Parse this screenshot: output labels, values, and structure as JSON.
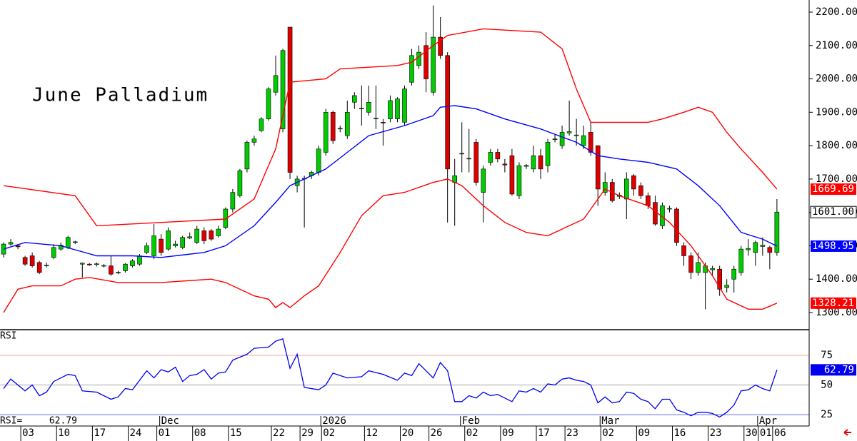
{
  "chart_data": [
    {
      "type": "candlestick",
      "title": "June Palladium",
      "xlim": [
        -0.5,
        112.5
      ],
      "ylim": [
        1248.7,
        2236.3
      ],
      "yticks": [
        {
          "value": 1300,
          "label": "1300.00"
        },
        {
          "value": 1400,
          "label": "1400.00"
        },
        {
          "value": 1500,
          "label": "1500.00"
        },
        {
          "value": 1600,
          "label": "1600.00"
        },
        {
          "value": 1700,
          "label": "1700.00"
        },
        {
          "value": 1800,
          "label": "1800.00"
        },
        {
          "value": 1900,
          "label": "1900.00"
        },
        {
          "value": 2000,
          "label": "2000.00"
        },
        {
          "value": 2100,
          "label": "2100.00"
        },
        {
          "value": 2200,
          "label": "2200.00"
        }
      ],
      "xticks": [
        {
          "value": 3,
          "label": "03"
        },
        {
          "value": 8,
          "label": "10"
        },
        {
          "value": 13,
          "label": "17"
        },
        {
          "value": 18,
          "label": "24"
        },
        {
          "value": 22,
          "label": "01"
        },
        {
          "value": 27,
          "label": "08"
        },
        {
          "value": 32,
          "label": "15"
        },
        {
          "value": 38,
          "label": "22"
        },
        {
          "value": 42,
          "label": "29"
        },
        {
          "value": 45,
          "label": "02"
        },
        {
          "value": 51,
          "label": "12"
        },
        {
          "value": 56,
          "label": "20"
        },
        {
          "value": 60,
          "label": "26"
        },
        {
          "value": 65,
          "label": "02"
        },
        {
          "value": 70,
          "label": "09"
        },
        {
          "value": 75,
          "label": "17"
        },
        {
          "value": 79,
          "label": "23"
        },
        {
          "value": 84,
          "label": "02"
        },
        {
          "value": 89,
          "label": "09"
        },
        {
          "value": 94,
          "label": "16"
        },
        {
          "value": 99,
          "label": "23"
        },
        {
          "value": 104,
          "label": "30"
        },
        {
          "value": 106,
          "label": "01"
        },
        {
          "value": 108,
          "label": "06"
        }
      ],
      "up_color": "#00cc00",
      "down_color": "#dd0000",
      "ohlc": [
        [
          1475,
          1510,
          1465,
          1505
        ],
        [
          1505,
          1520,
          1500,
          1510
        ],
        [
          1500,
          1505,
          1490,
          1497
        ],
        [
          1465,
          1470,
          1440,
          1445
        ],
        [
          1470,
          1480,
          1435,
          1440
        ],
        [
          1450,
          1455,
          1415,
          1420
        ],
        [
          1440,
          1450,
          1435,
          1442
        ],
        [
          1465,
          1505,
          1460,
          1495
        ],
        [
          1490,
          1510,
          1485,
          1502
        ],
        [
          1495,
          1530,
          1490,
          1525
        ],
        [
          1510,
          1515,
          1505,
          1512
        ],
        [
          1445,
          1450,
          1405,
          1448
        ],
        [
          1445,
          1448,
          1440,
          1444
        ],
        [
          1445,
          1450,
          1438,
          1446
        ],
        [
          1440,
          1445,
          1435,
          1441
        ],
        [
          1440,
          1470,
          1410,
          1415
        ],
        [
          1420,
          1425,
          1415,
          1421
        ],
        [
          1425,
          1448,
          1420,
          1445
        ],
        [
          1440,
          1460,
          1435,
          1455
        ],
        [
          1445,
          1475,
          1440,
          1470
        ],
        [
          1480,
          1510,
          1475,
          1500
        ],
        [
          1470,
          1565,
          1460,
          1530
        ],
        [
          1520,
          1535,
          1470,
          1480
        ],
        [
          1490,
          1555,
          1485,
          1545
        ],
        [
          1500,
          1515,
          1495,
          1505
        ],
        [
          1495,
          1530,
          1490,
          1525
        ],
        [
          1523,
          1540,
          1520,
          1527
        ],
        [
          1510,
          1560,
          1505,
          1550
        ],
        [
          1545,
          1555,
          1505,
          1515
        ],
        [
          1545,
          1550,
          1515,
          1520
        ],
        [
          1530,
          1560,
          1525,
          1550
        ],
        [
          1555,
          1615,
          1550,
          1610
        ],
        [
          1610,
          1670,
          1600,
          1660
        ],
        [
          1650,
          1730,
          1645,
          1725
        ],
        [
          1730,
          1815,
          1720,
          1810
        ],
        [
          1810,
          1830,
          1800,
          1820
        ],
        [
          1845,
          1885,
          1840,
          1880
        ],
        [
          1880,
          1975,
          1875,
          1970
        ],
        [
          1960,
          2070,
          1950,
          2010
        ],
        [
          1850,
          2090,
          1840,
          2085
        ],
        [
          2155,
          2155,
          1700,
          1720
        ],
        [
          1680,
          1710,
          1660,
          1700
        ],
        [
          1700,
          1710,
          1555,
          1702
        ],
        [
          1710,
          1725,
          1700,
          1720
        ],
        [
          1720,
          1800,
          1710,
          1790
        ],
        [
          1780,
          1910,
          1770,
          1900
        ],
        [
          1900,
          1905,
          1805,
          1815
        ],
        [
          1850,
          1860,
          1840,
          1852
        ],
        [
          1830,
          1935,
          1820,
          1900
        ],
        [
          1930,
          1960,
          1910,
          1950
        ],
        [
          1910,
          1980,
          1860,
          1912
        ],
        [
          1900,
          1980,
          1890,
          1930
        ],
        [
          1880,
          1980,
          1850,
          1882
        ],
        [
          1870,
          1880,
          1800,
          1868
        ],
        [
          1880,
          1950,
          1870,
          1935
        ],
        [
          1880,
          1945,
          1870,
          1940
        ],
        [
          1870,
          1980,
          1860,
          1970
        ],
        [
          1990,
          2090,
          1980,
          2070
        ],
        [
          2040,
          2100,
          2030,
          2080
        ],
        [
          2100,
          2140,
          1960,
          2000
        ],
        [
          1960,
          2220,
          1950,
          2125
        ],
        [
          2125,
          2185,
          2060,
          2070
        ],
        [
          2070,
          2080,
          1570,
          1730
        ],
        [
          1690,
          1760,
          1560,
          1710
        ],
        [
          1775,
          1870,
          1720,
          1777
        ],
        [
          1760,
          1850,
          1720,
          1762
        ],
        [
          1810,
          1820,
          1680,
          1690
        ],
        [
          1660,
          1740,
          1570,
          1730
        ],
        [
          1750,
          1790,
          1740,
          1780
        ],
        [
          1780,
          1790,
          1750,
          1760
        ],
        [
          1745,
          1760,
          1720,
          1742
        ],
        [
          1770,
          1790,
          1650,
          1655
        ],
        [
          1650,
          1750,
          1640,
          1740
        ],
        [
          1738,
          1745,
          1730,
          1741
        ],
        [
          1730,
          1800,
          1720,
          1770
        ],
        [
          1770,
          1790,
          1700,
          1730
        ],
        [
          1740,
          1820,
          1720,
          1810
        ],
        [
          1818,
          1835,
          1810,
          1820
        ],
        [
          1800,
          1860,
          1790,
          1840
        ],
        [
          1838,
          1935,
          1830,
          1842
        ],
        [
          1830,
          1880,
          1800,
          1832
        ],
        [
          1800,
          1860,
          1790,
          1830
        ],
        [
          1840,
          1870,
          1770,
          1780
        ],
        [
          1800,
          1800,
          1620,
          1670
        ],
        [
          1660,
          1720,
          1650,
          1690
        ],
        [
          1690,
          1700,
          1630,
          1635
        ],
        [
          1648,
          1660,
          1640,
          1652
        ],
        [
          1640,
          1720,
          1580,
          1700
        ],
        [
          1710,
          1715,
          1650,
          1670
        ],
        [
          1680,
          1690,
          1640,
          1650
        ],
        [
          1650,
          1660,
          1610,
          1620
        ],
        [
          1630,
          1650,
          1560,
          1565
        ],
        [
          1560,
          1630,
          1550,
          1620
        ],
        [
          1610,
          1620,
          1600,
          1612
        ],
        [
          1610,
          1615,
          1500,
          1510
        ],
        [
          1500,
          1510,
          1440,
          1470
        ],
        [
          1470,
          1480,
          1400,
          1420
        ],
        [
          1420,
          1480,
          1410,
          1450
        ],
        [
          1420,
          1450,
          1310,
          1440
        ],
        [
          1428,
          1440,
          1410,
          1432
        ],
        [
          1430,
          1440,
          1350,
          1370
        ],
        [
          1375,
          1400,
          1360,
          1382
        ],
        [
          1400,
          1440,
          1360,
          1430
        ],
        [
          1420,
          1500,
          1410,
          1490
        ],
        [
          1488,
          1520,
          1470,
          1492
        ],
        [
          1480,
          1515,
          1440,
          1510
        ],
        [
          1498,
          1525,
          1470,
          1502
        ],
        [
          1495,
          1500,
          1430,
          1480
        ],
        [
          1480,
          1640,
          1470,
          1601
        ]
      ],
      "last_close_label": "1601.00",
      "bands": {
        "upper": {
          "color": "#ff0000",
          "last_label": "1669.69",
          "x": [
            0,
            10,
            13,
            31,
            35,
            38,
            40,
            45,
            47,
            55,
            57,
            60,
            62,
            67,
            75,
            78,
            80,
            82,
            90,
            92,
            95,
            97,
            99,
            101,
            103,
            106,
            108
          ],
          "values": [
            1680,
            1650,
            1560,
            1580,
            1640,
            1790,
            1990,
            2000,
            2030,
            2040,
            2050,
            2100,
            2130,
            2150,
            2140,
            2090,
            1970,
            1870,
            1870,
            1880,
            1900,
            1915,
            1900,
            1840,
            1790,
            1720,
            1669.69
          ]
        },
        "middle": {
          "color": "#0000ff",
          "last_label": "1498.95",
          "x": [
            0,
            3,
            8,
            13,
            18,
            22,
            28,
            31,
            35,
            38,
            40,
            45,
            48,
            51,
            56,
            60,
            61,
            63,
            66,
            70,
            75,
            80,
            83,
            86,
            90,
            94,
            97,
            100,
            103,
            106,
            108
          ],
          "values": [
            1490,
            1510,
            1500,
            1470,
            1470,
            1465,
            1480,
            1500,
            1560,
            1630,
            1680,
            1730,
            1780,
            1830,
            1860,
            1890,
            1915,
            1920,
            1910,
            1880,
            1850,
            1810,
            1770,
            1760,
            1750,
            1730,
            1680,
            1620,
            1540,
            1520,
            1498.95
          ]
        },
        "lower": {
          "color": "#ff0000",
          "last_label": "1328.21",
          "x": [
            0,
            2,
            4,
            8,
            10,
            12,
            16,
            22,
            29,
            31,
            35,
            37,
            38,
            39,
            40,
            42,
            44,
            47,
            50,
            53,
            56,
            60,
            62,
            64,
            67,
            70,
            73,
            76,
            79,
            81,
            84,
            86,
            90,
            93,
            96,
            99,
            101,
            104,
            106,
            108
          ],
          "values": [
            1300,
            1370,
            1380,
            1380,
            1400,
            1405,
            1390,
            1390,
            1400,
            1390,
            1350,
            1340,
            1315,
            1330,
            1315,
            1350,
            1380,
            1480,
            1590,
            1650,
            1660,
            1690,
            1700,
            1680,
            1620,
            1570,
            1540,
            1530,
            1560,
            1580,
            1670,
            1650,
            1620,
            1570,
            1500,
            1410,
            1340,
            1310,
            1310,
            1328.21
          ]
        }
      }
    },
    {
      "type": "line",
      "label": "RSI",
      "readout_label": "RSI=",
      "color": "#0000ee",
      "last_label": "62.79",
      "xlim": [
        -0.5,
        112.5
      ],
      "ylim": [
        15.4,
        96.7
      ],
      "yticks": [
        25,
        50,
        75
      ],
      "month_labels": [
        {
          "value": 23,
          "label": "Dec"
        },
        {
          "value": 45.5,
          "label": "2026"
        },
        {
          "value": 65,
          "label": "Feb"
        },
        {
          "value": 84.5,
          "label": "Mar"
        },
        {
          "value": 106.5,
          "label": "Apr"
        }
      ],
      "x": [
        0,
        1,
        3,
        4,
        5,
        6,
        7,
        9,
        10,
        11,
        13,
        15,
        16,
        17,
        18,
        20,
        21,
        22,
        23,
        24,
        25,
        26,
        27,
        28,
        29,
        30,
        31,
        32,
        34,
        35,
        37,
        38,
        39,
        40,
        41,
        42,
        44,
        45,
        46,
        48,
        50,
        51,
        53,
        55,
        56,
        57,
        58,
        59,
        60,
        61,
        62,
        63,
        64,
        65,
        66,
        67,
        68,
        69,
        70,
        71,
        72,
        73,
        74,
        75,
        76,
        77,
        78,
        79,
        80,
        81,
        82,
        83,
        84,
        85,
        86,
        87,
        88,
        89,
        90,
        91,
        92,
        93,
        94,
        95,
        96,
        97,
        98,
        99,
        100,
        101,
        102,
        103,
        104,
        105,
        106,
        107,
        108
      ],
      "values": [
        47,
        55,
        45,
        50,
        41,
        44,
        53,
        59,
        58,
        45,
        44,
        38,
        40,
        47,
        46,
        62,
        56,
        63,
        61,
        65,
        53,
        58,
        59,
        63,
        55,
        60,
        61,
        71,
        76,
        81,
        82,
        87,
        89,
        64,
        76,
        48,
        46,
        50,
        60,
        56,
        57,
        62,
        59,
        54,
        60,
        58,
        68,
        62,
        56,
        69,
        62,
        36,
        36,
        41,
        39,
        44,
        41,
        42,
        39,
        36,
        45,
        44,
        47,
        44,
        51,
        50,
        55,
        56,
        54,
        53,
        50,
        35,
        40,
        35,
        36,
        44,
        43,
        38,
        36,
        30,
        38,
        38,
        29,
        27,
        24,
        27,
        27,
        26,
        23,
        27,
        33,
        45,
        46,
        50,
        47,
        45,
        62.79
      ]
    }
  ]
}
